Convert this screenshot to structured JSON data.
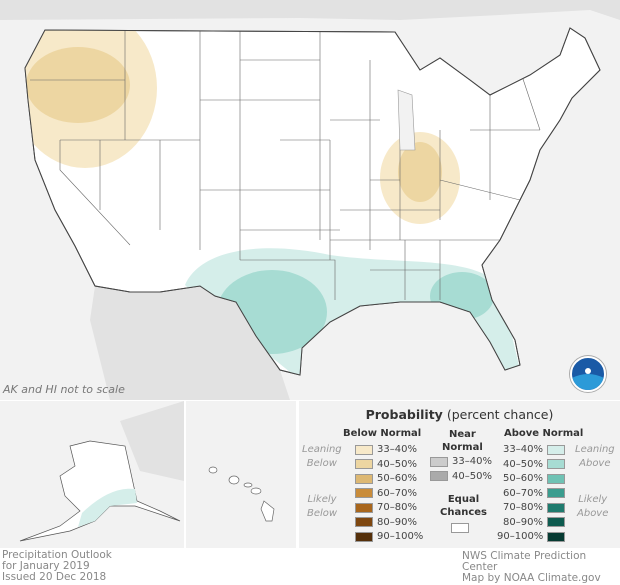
{
  "title": "Precipitation Outlook",
  "period": "for January 2019",
  "issued": "Issued 20 Dec 2018",
  "scale_note": "AK and HI not to scale",
  "credits": [
    "NWS Climate Prediction Center",
    "Map by NOAA Climate.gov"
  ],
  "logo_text": "NOAA",
  "legend": {
    "title_bold": "Probability",
    "title_rest": "(percent chance)",
    "below": {
      "header": "Below Normal",
      "leaning_label": [
        "Leaning",
        "Below"
      ],
      "likely_label": [
        "Likely",
        "Below"
      ],
      "items": [
        {
          "label": "33–40%",
          "color": "#f7e9c9"
        },
        {
          "label": "40–50%",
          "color": "#edd6a2"
        },
        {
          "label": "50–60%",
          "color": "#ddb873"
        },
        {
          "label": "60–70%",
          "color": "#c98c3a"
        },
        {
          "label": "70–80%",
          "color": "#a8661c"
        },
        {
          "label": "80–90%",
          "color": "#7e4710"
        },
        {
          "label": "90–100%",
          "color": "#55300a"
        }
      ]
    },
    "near": {
      "header": [
        "Near",
        "Normal"
      ],
      "items": [
        {
          "label": "33–40%",
          "color": "#cccccc"
        },
        {
          "label": "40–50%",
          "color": "#aaaaaa"
        }
      ]
    },
    "equal": {
      "header": [
        "Equal",
        "Chances"
      ],
      "color": "#ffffff"
    },
    "above": {
      "header": "Above Normal",
      "leaning_label": [
        "Leaning",
        "Above"
      ],
      "likely_label": [
        "Likely",
        "Above"
      ],
      "items": [
        {
          "label": "33–40%",
          "color": "#d5eeea"
        },
        {
          "label": "40–50%",
          "color": "#a7dcd3"
        },
        {
          "label": "50–60%",
          "color": "#6fc2b4"
        },
        {
          "label": "60–70%",
          "color": "#3b9d8f"
        },
        {
          "label": "70–80%",
          "color": "#1f7b6e"
        },
        {
          "label": "80–90%",
          "color": "#0e5b4f"
        },
        {
          "label": "90–100%",
          "color": "#063a32"
        }
      ]
    }
  }
}
